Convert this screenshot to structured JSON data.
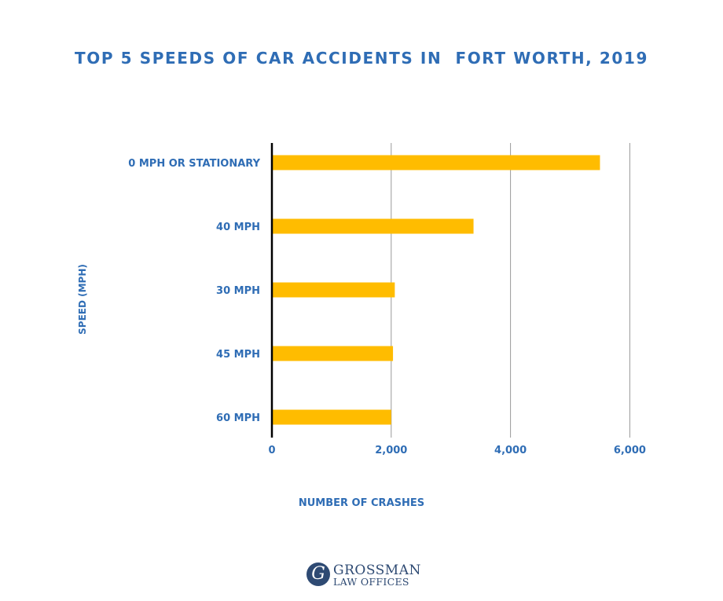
{
  "chart_data": {
    "type": "bar",
    "orientation": "horizontal",
    "title": "TOP 5 SPEEDS OF CAR ACCIDENTS IN  FORT WORTH, 2019",
    "xlabel": "NUMBER OF CRASHES",
    "ylabel": "SPEED (MPH)",
    "categories": [
      "0 MPH OR STATIONARY",
      "40 MPH",
      "30 MPH",
      "45 MPH",
      "60 MPH"
    ],
    "values": [
      5500,
      3380,
      2060,
      2030,
      2000
    ],
    "xlim": [
      0,
      6500
    ],
    "xticks": [
      0,
      2000,
      4000,
      6000
    ],
    "xtick_labels": [
      "0",
      "2,000",
      "4,000",
      "6,000"
    ],
    "grid": "vertical",
    "legend": "none",
    "colors": {
      "bar": "#ffbc00",
      "text": "#2f6db5",
      "grid": "#999999",
      "axis": "#000000"
    }
  },
  "logo": {
    "line1": "GROSSMAN",
    "line2": "LAW OFFICES",
    "mark": "G"
  }
}
